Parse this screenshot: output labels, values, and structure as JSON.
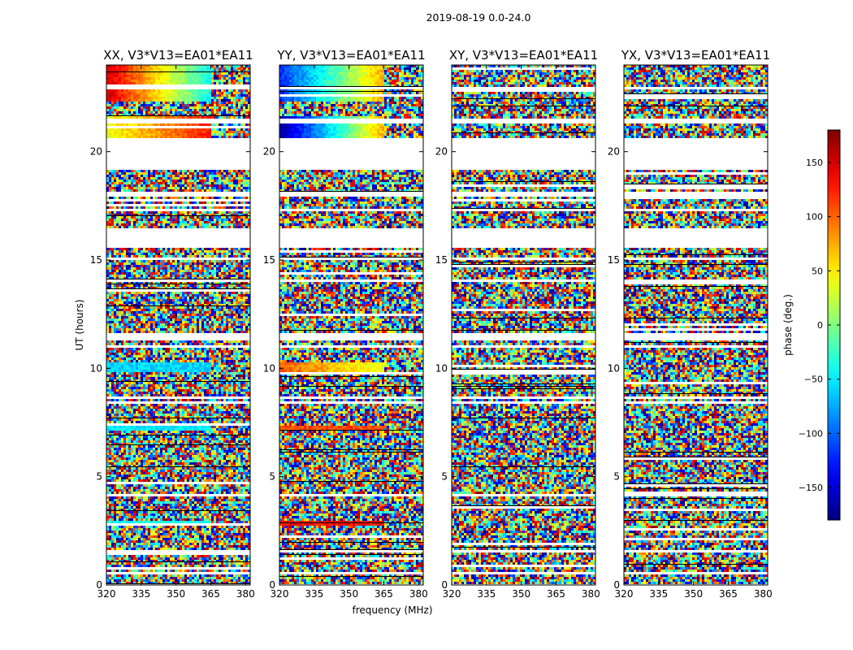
{
  "figure": {
    "suptitle": "2019-08-19 0.0-24.0"
  },
  "chart_data": {
    "type": "heatmap",
    "title": "2019-08-19 0.0-24.0",
    "xlabel": "frequency (MHz)",
    "ylabel": "UT (hours)",
    "xlim": [
      320,
      382
    ],
    "ylim": [
      0,
      24
    ],
    "x_ticks": [
      320,
      335,
      350,
      365,
      380
    ],
    "y_ticks": [
      0,
      5,
      10,
      15,
      20
    ],
    "panels": [
      {
        "name": "XX",
        "title": "XX, V3*V13=EA01*EA11",
        "coherent_bands": [
          [
            22.3,
            24.0,
            150,
            -120
          ],
          [
            20.5,
            21.6,
            40,
            160
          ],
          [
            9.8,
            10.2,
            -60,
            -60
          ],
          [
            7.1,
            7.3,
            -50,
            -50
          ],
          [
            2.7,
            2.9,
            -40,
            -40
          ]
        ]
      },
      {
        "name": "YY",
        "title": "YY, V3*V13=EA01*EA11",
        "coherent_bands": [
          [
            22.3,
            24.0,
            -120,
            150
          ],
          [
            20.5,
            21.6,
            -170,
            170
          ],
          [
            9.8,
            10.2,
            100,
            10
          ],
          [
            7.1,
            7.3,
            110,
            110
          ],
          [
            2.7,
            2.9,
            130,
            130
          ]
        ]
      },
      {
        "name": "XY",
        "title": "XY, V3*V13=EA01*EA11",
        "coherent_bands": []
      },
      {
        "name": "YX",
        "title": "YX, V3*V13=EA01*EA11",
        "coherent_bands": []
      }
    ],
    "flagged_ut_ranges": [
      [
        19.2,
        20.6
      ],
      [
        16.5,
        15.5
      ],
      [
        23.0,
        22.85
      ],
      [
        21.55,
        21.35
      ],
      [
        17.35,
        17.2
      ],
      [
        18.1,
        17.95
      ],
      [
        15.1,
        15.0
      ],
      [
        14.1,
        13.95
      ],
      [
        11.6,
        11.3
      ],
      [
        11.05,
        10.95
      ],
      [
        8.7,
        8.55
      ],
      [
        8.4,
        8.3
      ],
      [
        4.2,
        4.1
      ],
      [
        1.6,
        1.45
      ],
      [
        0.6,
        0.45
      ]
    ],
    "colorbar": {
      "label": "phase (deg.)",
      "range": [
        -180,
        180
      ],
      "ticks": [
        150,
        100,
        50,
        0,
        -50,
        -100,
        -150
      ],
      "tick_labels": [
        "150",
        "100",
        "50",
        "0",
        "−50",
        "−100",
        "−150"
      ],
      "colormap": "jet"
    }
  }
}
